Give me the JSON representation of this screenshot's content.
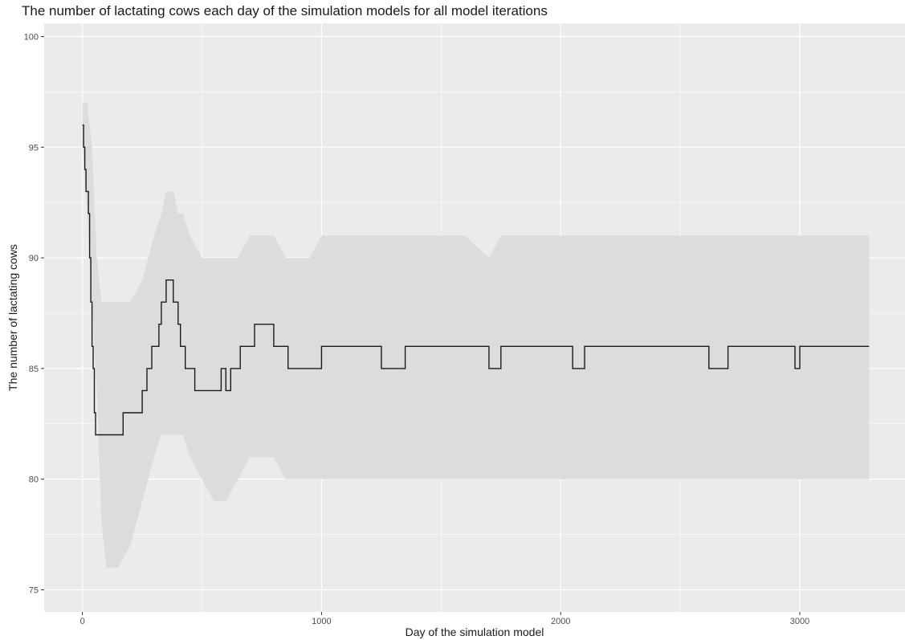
{
  "chart_data": {
    "type": "line",
    "title": "The number of lactating cows each day of the simulation models for all model iterations",
    "xlabel": "Day of the simulation model",
    "ylabel": "The number of lactating cows",
    "xlim": [
      -160,
      3440
    ],
    "ylim": [
      74.0,
      100.6
    ],
    "x_ticks": [
      0,
      1000,
      2000,
      3000
    ],
    "x_tick_labels": [
      "0",
      "1000",
      "2000",
      "3000"
    ],
    "y_ticks": [
      75,
      80,
      85,
      90,
      95,
      100
    ],
    "y_tick_labels": [
      "75",
      "80",
      "85",
      "90",
      "95",
      "100"
    ],
    "grid": true,
    "legend": "none",
    "colors": {
      "panel_background": "#ebebeb",
      "grid_line": "#ffffff",
      "range_band": "#dcdcde",
      "mean_line": "#1a1a1a"
    },
    "series": [
      {
        "role": "mean",
        "x": [
          0,
          5,
          10,
          15,
          20,
          25,
          30,
          35,
          40,
          45,
          50,
          55,
          60,
          70,
          100,
          150,
          170,
          190,
          200,
          230,
          250,
          260,
          270,
          280,
          290,
          300,
          310,
          320,
          330,
          340,
          350,
          360,
          370,
          380,
          390,
          400,
          410,
          420,
          430,
          440,
          450,
          460,
          470,
          480,
          490,
          520,
          550,
          580,
          600,
          620,
          640,
          660,
          680,
          700,
          720,
          760,
          800,
          820,
          840,
          860,
          900,
          950,
          1000,
          1050,
          1100,
          1150,
          1200,
          1250,
          1300,
          1350,
          1400,
          1500,
          1600,
          1650,
          1700,
          1750,
          1800,
          2000,
          2050,
          2100,
          2150,
          2200,
          2300,
          2400,
          2500,
          2600,
          2620,
          2640,
          2660,
          2700,
          2800,
          2900,
          2950,
          2980,
          3000,
          3100,
          3200,
          3290
        ],
        "y": [
          96,
          95,
          94,
          93,
          93,
          92,
          90,
          88,
          86,
          85,
          83,
          82,
          82,
          82,
          82,
          82,
          83,
          83,
          83,
          83,
          84,
          84,
          85,
          85,
          86,
          86,
          86,
          87,
          88,
          88,
          89,
          89,
          89,
          88,
          88,
          87,
          86,
          86,
          85,
          85,
          85,
          85,
          84,
          84,
          84,
          84,
          84,
          85,
          84,
          85,
          85,
          86,
          86,
          86,
          87,
          87,
          86,
          86,
          86,
          85,
          85,
          85,
          86,
          86,
          86,
          86,
          86,
          85,
          85,
          86,
          86,
          86,
          86,
          86,
          85,
          86,
          86,
          86,
          85,
          86,
          86,
          86,
          86,
          86,
          86,
          86,
          85,
          85,
          85,
          86,
          86,
          86,
          86,
          85,
          86,
          86,
          86,
          86
        ]
      },
      {
        "role": "range",
        "x": [
          0,
          20,
          40,
          60,
          80,
          100,
          150,
          200,
          250,
          300,
          330,
          350,
          380,
          400,
          420,
          450,
          500,
          550,
          600,
          650,
          700,
          750,
          800,
          850,
          900,
          950,
          1000,
          1100,
          1200,
          1300,
          1400,
          1500,
          1600,
          1700,
          1750,
          1800,
          1900,
          2000,
          2100,
          2200,
          2300,
          2400,
          2500,
          2600,
          2700,
          2800,
          2900,
          3000,
          3100,
          3200,
          3290
        ],
        "ymin": [
          95,
          92,
          88,
          84,
          78,
          76,
          76,
          77,
          79,
          81,
          82,
          82,
          82,
          82,
          82,
          81,
          80,
          79,
          79,
          80,
          81,
          81,
          81,
          80,
          80,
          80,
          80,
          80,
          80,
          80,
          80,
          80,
          80,
          80,
          80,
          80,
          80,
          80,
          80,
          80,
          80,
          80,
          80,
          80,
          80,
          80,
          80,
          80,
          80,
          80,
          80
        ],
        "ymax": [
          97,
          97,
          95,
          90,
          88,
          88,
          88,
          88,
          89,
          91,
          92,
          93,
          93,
          92,
          92,
          91,
          90,
          90,
          90,
          90,
          91,
          91,
          91,
          90,
          90,
          90,
          91,
          91,
          91,
          91,
          91,
          91,
          91,
          90,
          91,
          91,
          91,
          91,
          91,
          91,
          91,
          91,
          91,
          91,
          91,
          91,
          91,
          91,
          91,
          91,
          91
        ]
      }
    ]
  }
}
